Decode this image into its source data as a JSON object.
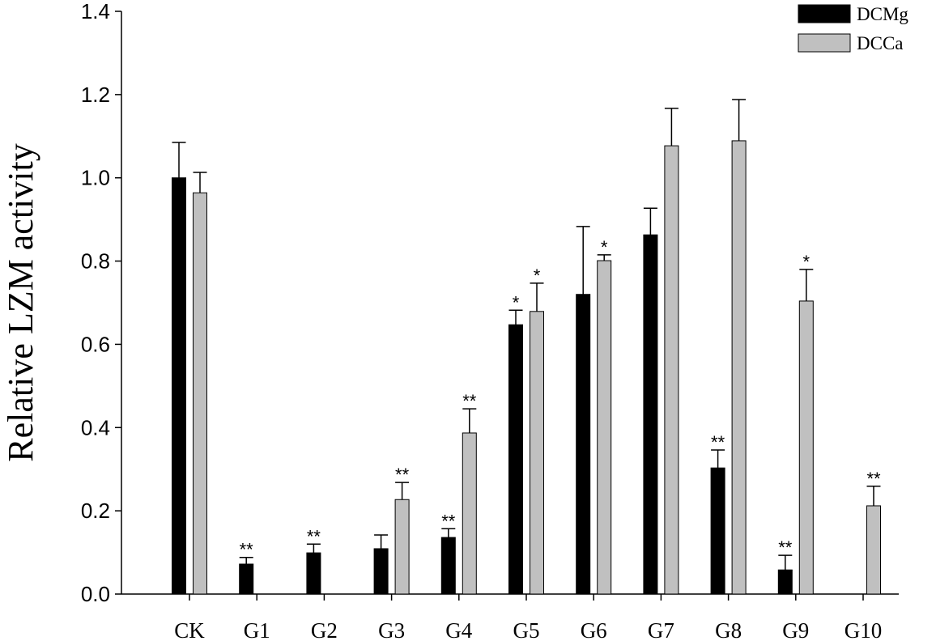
{
  "chart_data": {
    "type": "bar",
    "y_label": "Relative LZM activity",
    "categories": [
      "CK",
      "G1",
      "G2",
      "G3",
      "G4",
      "G5",
      "G6",
      "G7",
      "G8",
      "G9",
      "G10"
    ],
    "series": [
      {
        "name": "DCMg",
        "color": "#000000",
        "values": [
          1.0,
          0.072,
          0.099,
          0.109,
          0.136,
          0.647,
          0.72,
          0.863,
          0.303,
          0.058,
          null
        ],
        "errors": [
          0.085,
          0.016,
          0.021,
          0.033,
          0.021,
          0.035,
          0.163,
          0.064,
          0.043,
          0.035,
          null
        ],
        "annotations": [
          null,
          "**",
          "**",
          null,
          "**",
          "*",
          null,
          null,
          "**",
          "**",
          null
        ]
      },
      {
        "name": "DCCa",
        "color": "#c0c0c0",
        "values": [
          0.964,
          null,
          null,
          0.227,
          0.387,
          0.679,
          0.801,
          1.077,
          1.089,
          0.704,
          0.212
        ],
        "errors": [
          0.049,
          null,
          null,
          0.041,
          0.058,
          0.068,
          0.014,
          0.09,
          0.099,
          0.076,
          0.047
        ],
        "annotations": [
          null,
          null,
          null,
          "**",
          "**",
          "*",
          "*",
          null,
          null,
          "*",
          "**"
        ]
      }
    ],
    "ylim": [
      0,
      1.4
    ],
    "yticks": [
      {
        "value": 0,
        "label": "0.0"
      },
      0.2,
      0.4,
      0.6,
      0.8,
      {
        "value": 1,
        "label": "1.0"
      },
      1.2,
      1.4
    ],
    "legend": "upper right"
  }
}
